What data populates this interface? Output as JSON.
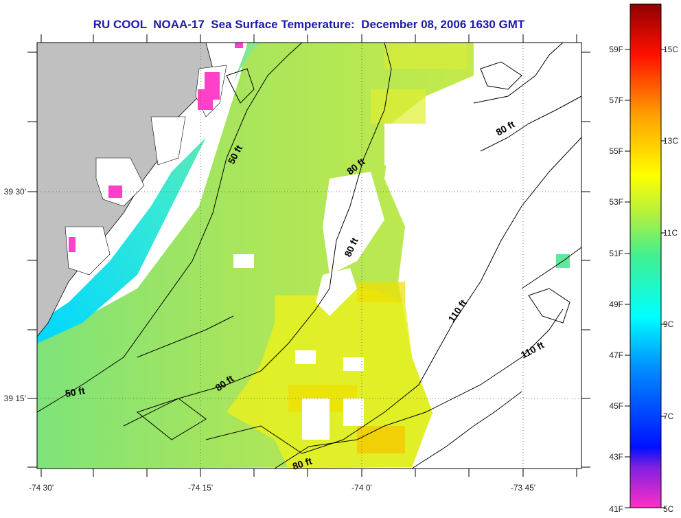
{
  "title": "RU COOL  NOAA-17  Sea Surface Temperature:  December 08, 2006 1630 GMT",
  "axes": {
    "x_ticks": [
      "-74 30'",
      "-74 15'",
      "-74 0'",
      "-73 45'"
    ],
    "y_ticks": [
      "39 30'",
      "39 15'"
    ]
  },
  "contour_labels": [
    {
      "text": "50 ft"
    },
    {
      "text": "80 ft"
    },
    {
      "text": "80 ft"
    },
    {
      "text": "80 ft"
    },
    {
      "text": "80 ft"
    },
    {
      "text": "110 ft"
    },
    {
      "text": "110 ft"
    },
    {
      "text": "50 ft"
    },
    {
      "text": "80 ft"
    }
  ],
  "colorbar": {
    "fahrenheit_labels": [
      "59F",
      "57F",
      "55F",
      "53F",
      "51F",
      "49F",
      "47F",
      "45F",
      "43F",
      "41F"
    ],
    "celsius_labels": [
      "15C",
      "13C",
      "11C",
      "9C",
      "7C",
      "5C"
    ]
  },
  "colors": {
    "land": "#c0c0c0",
    "ocean_green": "#9be05a",
    "title": "#1a1aa8"
  }
}
